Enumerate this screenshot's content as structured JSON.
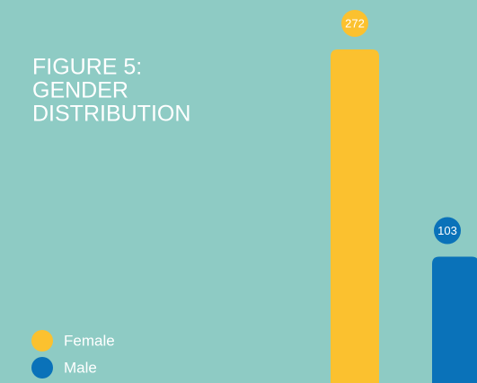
{
  "chart_data": {
    "type": "bar",
    "title": [
      "FIGURE 5:",
      "GENDER",
      "DISTRIBUTION"
    ],
    "categories": [
      "Female",
      "Male"
    ],
    "values": [
      272,
      103
    ],
    "colors": [
      "#fbc12f",
      "#0a72b9"
    ],
    "legend": "bottom-left"
  }
}
